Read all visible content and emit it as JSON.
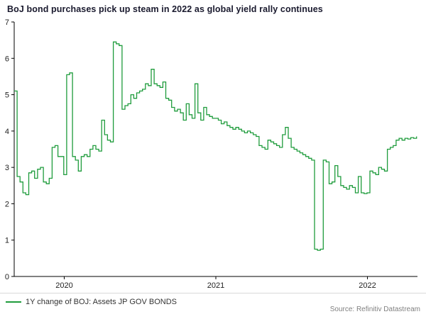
{
  "title": "BoJ bond purchases pick up steam in 2022 as global yield rally continues",
  "legend": {
    "label": "1Y change of BOJ: Assets JP GOV BONDS"
  },
  "source": "Source: Refinitiv Datastream",
  "colors": {
    "line": "#1f9c3c",
    "title": "#1a1a2e",
    "axis": "#000000",
    "tick_text": "#222222",
    "muted": "#808080"
  },
  "chart_data": {
    "type": "line",
    "title": "BoJ bond purchases pick up steam in 2022 as global yield rally continues",
    "series_name": "1Y change of BOJ: Assets JP GOV BONDS",
    "interpolation": "step-after",
    "x_unit": "year (weekly data)",
    "x_range": [
      2019.67,
      2022.33
    ],
    "x_step": 0.019231,
    "xticks": [
      2020,
      2021,
      2022
    ],
    "ylim": [
      0,
      7
    ],
    "yticks": [
      0,
      1,
      2,
      3,
      4,
      5,
      6,
      7
    ],
    "grid": false,
    "legend_position": "bottom-left",
    "values": [
      5.1,
      2.75,
      2.6,
      2.3,
      2.25,
      2.85,
      2.9,
      2.7,
      2.95,
      3.0,
      2.6,
      2.55,
      2.7,
      3.55,
      3.6,
      3.3,
      3.3,
      2.8,
      5.55,
      5.6,
      3.3,
      3.2,
      2.9,
      3.3,
      3.35,
      3.3,
      3.5,
      3.6,
      3.5,
      3.45,
      4.3,
      3.9,
      3.75,
      3.7,
      6.45,
      6.4,
      6.35,
      4.6,
      4.7,
      4.75,
      5.0,
      4.9,
      5.05,
      5.1,
      5.15,
      5.3,
      5.25,
      5.7,
      5.3,
      5.25,
      5.2,
      5.35,
      4.9,
      4.85,
      4.65,
      4.55,
      4.6,
      4.5,
      4.3,
      4.75,
      4.45,
      4.35,
      5.3,
      4.5,
      4.3,
      4.65,
      4.45,
      4.4,
      4.35,
      4.35,
      4.3,
      4.2,
      4.25,
      4.15,
      4.1,
      4.05,
      4.1,
      4.05,
      4.0,
      3.95,
      4.0,
      3.95,
      3.9,
      3.85,
      3.6,
      3.55,
      3.5,
      3.75,
      3.7,
      3.65,
      3.6,
      3.55,
      3.9,
      4.1,
      3.8,
      3.55,
      3.5,
      3.45,
      3.4,
      3.35,
      3.3,
      3.25,
      3.2,
      0.75,
      0.72,
      0.75,
      3.2,
      3.15,
      2.55,
      2.6,
      3.05,
      2.75,
      2.5,
      2.45,
      2.4,
      2.5,
      2.45,
      2.3,
      2.75,
      2.3,
      2.28,
      2.3,
      2.9,
      2.85,
      2.8,
      3.0,
      2.95,
      2.9,
      3.5,
      3.55,
      3.6,
      3.75,
      3.8,
      3.75,
      3.8,
      3.78,
      3.82,
      3.8,
      3.85
    ]
  }
}
